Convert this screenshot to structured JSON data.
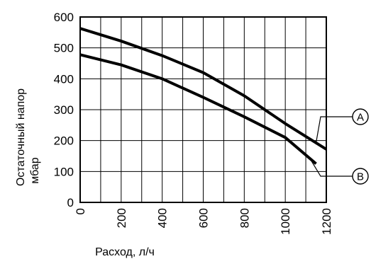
{
  "chart_data": {
    "type": "line",
    "xlabel": "Расход, л/ч",
    "ylabel_line1": "Остаточный напор",
    "ylabel_line2": "мбар",
    "xlim": [
      0,
      1200
    ],
    "ylim": [
      0,
      600
    ],
    "x_ticks": [
      0,
      200,
      400,
      600,
      800,
      1000,
      1200
    ],
    "y_ticks": [
      0,
      100,
      200,
      300,
      400,
      500,
      600
    ],
    "grid": true,
    "x_grid_step": 100,
    "y_grid_step": 100,
    "series": [
      {
        "name": "A",
        "x": [
          0,
          200,
          400,
          600,
          800,
          1000,
          1200
        ],
        "y": [
          563,
          522,
          475,
          420,
          345,
          255,
          172
        ]
      },
      {
        "name": "B",
        "x": [
          0,
          200,
          400,
          600,
          800,
          1000,
          1150
        ],
        "y": [
          478,
          445,
          400,
          340,
          277,
          210,
          125
        ]
      }
    ],
    "annotations": [
      {
        "label": "A",
        "series": "A",
        "at_x": 1150
      },
      {
        "label": "B",
        "series": "B",
        "at_x": 1120
      }
    ]
  }
}
